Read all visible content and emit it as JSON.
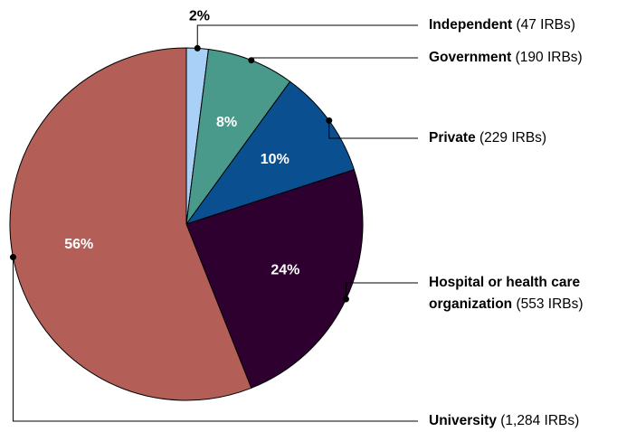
{
  "chart_data": {
    "type": "pie",
    "categories": [
      "Independent",
      "Government",
      "Private",
      "Hospital or health care organization",
      "University"
    ],
    "category_notes": [
      "(47 IRBs)",
      "(190 IRBs)",
      "(229 IRBs)",
      "(553 IRBs)",
      "(1,284 IRBs)"
    ],
    "values": [
      2,
      8,
      10,
      24,
      56
    ],
    "value_labels": [
      "2%",
      "8%",
      "10%",
      "24%",
      "56%"
    ],
    "colors": [
      "#a9d1f7",
      "#4a9a8c",
      "#0a4f8f",
      "#2e0030",
      "#b35f58"
    ]
  }
}
